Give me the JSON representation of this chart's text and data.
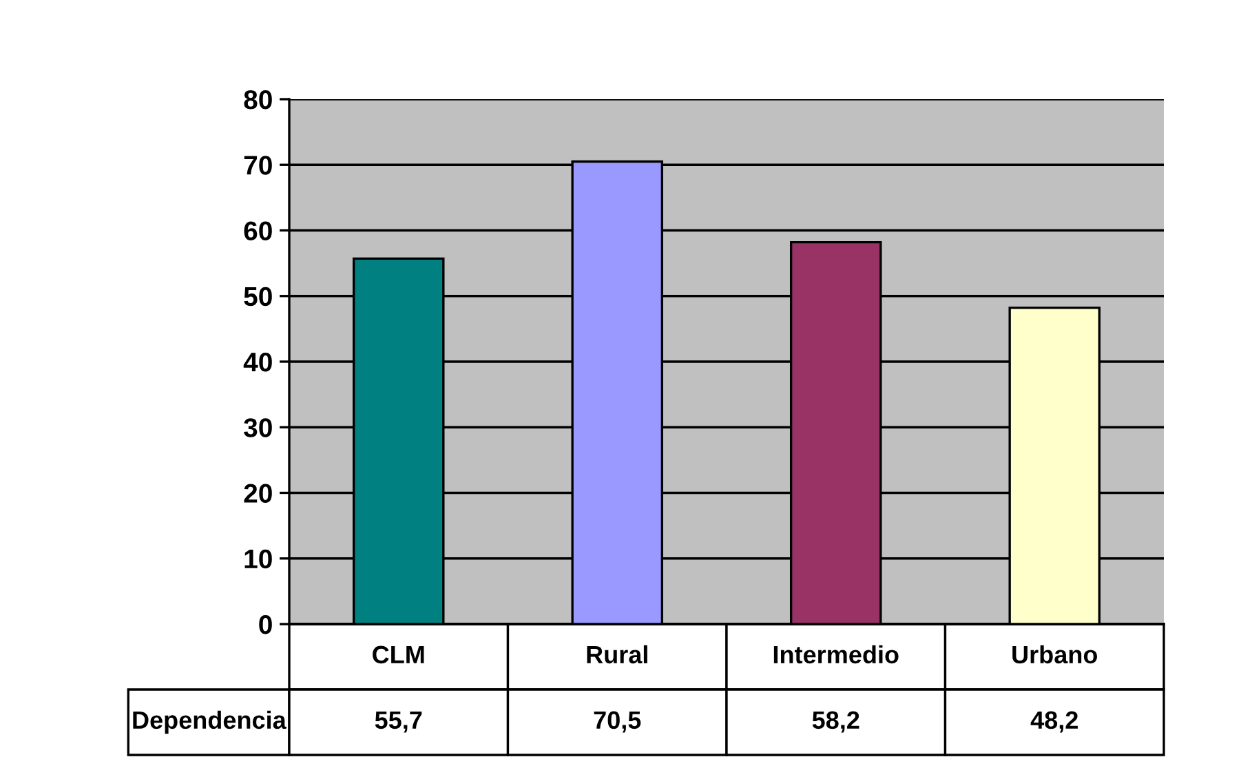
{
  "chart_data": {
    "type": "bar",
    "categories": [
      "CLM",
      "Rural",
      "Intermedio",
      "Urbano"
    ],
    "series": [
      {
        "name": "Dependencia",
        "colors": [
          "#008080",
          "#9999ff",
          "#993366",
          "#ffffcc"
        ],
        "values": [
          55.7,
          70.5,
          58.2,
          48.2
        ],
        "value_labels": [
          "55,7",
          "70,5",
          "58,2",
          "48,2"
        ]
      }
    ],
    "ylim": [
      0,
      80
    ],
    "yticks": [
      0,
      10,
      20,
      30,
      40,
      50,
      60,
      70,
      80
    ],
    "grid": "y"
  }
}
